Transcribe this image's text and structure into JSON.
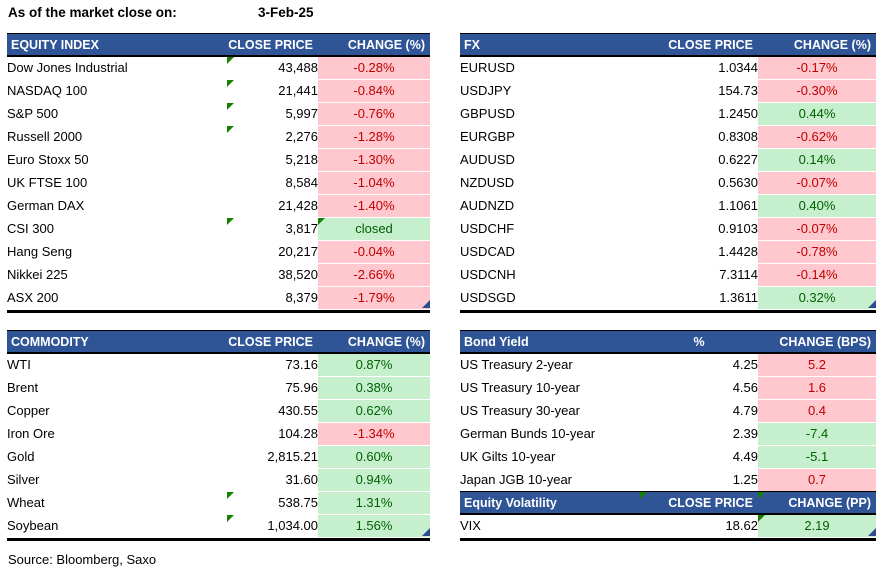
{
  "title": {
    "label": "As of the market close on:",
    "date": "3-Feb-25"
  },
  "footer": {
    "source": "Source: Bloomberg, Saxo"
  },
  "colors": {
    "header_bg": "#2F5597",
    "positive_bg": "#C6EFCE",
    "positive_text": "#006100",
    "negative_bg": "#FFC7CE",
    "negative_text": "#C00000",
    "comment_marker": "#178000",
    "corner_marker": "#2d4b8e"
  },
  "tables": {
    "equity": {
      "headers": [
        "EQUITY INDEX",
        "CLOSE PRICE",
        "CHANGE (%)"
      ],
      "end_marker": true,
      "rows": [
        {
          "name": "Dow Jones Industrial",
          "value": "43,488",
          "change": "-0.28%",
          "tone": "red",
          "mark_value": true
        },
        {
          "name": "NASDAQ 100",
          "value": "21,441",
          "change": "-0.84%",
          "tone": "red",
          "mark_value": true
        },
        {
          "name": "S&P 500",
          "value": "5,997",
          "change": "-0.76%",
          "tone": "red",
          "mark_value": true
        },
        {
          "name": "Russell 2000",
          "value": "2,276",
          "change": "-1.28%",
          "tone": "red",
          "mark_value": true
        },
        {
          "name": "Euro Stoxx 50",
          "value": "5,218",
          "change": "-1.30%",
          "tone": "red"
        },
        {
          "name": "UK FTSE 100",
          "value": "8,584",
          "change": "-1.04%",
          "tone": "red"
        },
        {
          "name": "German DAX",
          "value": "21,428",
          "change": "-1.40%",
          "tone": "red"
        },
        {
          "name": "CSI 300",
          "value": "3,817",
          "change": "closed",
          "tone": "green",
          "mark_value": true,
          "mark_change": true
        },
        {
          "name": "Hang Seng",
          "value": "20,217",
          "change": "-0.04%",
          "tone": "red"
        },
        {
          "name": "Nikkei 225",
          "value": "38,520",
          "change": "-2.66%",
          "tone": "red"
        },
        {
          "name": "ASX 200",
          "value": "8,379",
          "change": "-1.79%",
          "tone": "red"
        }
      ]
    },
    "fx": {
      "headers": [
        "FX",
        "CLOSE PRICE",
        "CHANGE (%)"
      ],
      "end_marker": true,
      "rows": [
        {
          "name": "EURUSD",
          "value": "1.0344",
          "change": "-0.17%",
          "tone": "red"
        },
        {
          "name": "USDJPY",
          "value": "154.73",
          "change": "-0.30%",
          "tone": "red"
        },
        {
          "name": "GBPUSD",
          "value": "1.2450",
          "change": "0.44%",
          "tone": "green"
        },
        {
          "name": "EURGBP",
          "value": "0.8308",
          "change": "-0.62%",
          "tone": "red"
        },
        {
          "name": "AUDUSD",
          "value": "0.6227",
          "change": "0.14%",
          "tone": "green"
        },
        {
          "name": "NZDUSD",
          "value": "0.5630",
          "change": "-0.07%",
          "tone": "red"
        },
        {
          "name": "AUDNZD",
          "value": "1.1061",
          "change": "0.40%",
          "tone": "green"
        },
        {
          "name": "USDCHF",
          "value": "0.9103",
          "change": "-0.07%",
          "tone": "red"
        },
        {
          "name": "USDCAD",
          "value": "1.4428",
          "change": "-0.78%",
          "tone": "red"
        },
        {
          "name": "USDCNH",
          "value": "7.3114",
          "change": "-0.14%",
          "tone": "red"
        },
        {
          "name": "USDSGD",
          "value": "1.3611",
          "change": "0.32%",
          "tone": "green"
        }
      ]
    },
    "commodity": {
      "headers": [
        "COMMODITY",
        "CLOSE PRICE",
        "CHANGE (%)"
      ],
      "end_marker": true,
      "rows": [
        {
          "name": "WTI",
          "value": "73.16",
          "change": "0.87%",
          "tone": "green"
        },
        {
          "name": "Brent",
          "value": "75.96",
          "change": "0.38%",
          "tone": "green"
        },
        {
          "name": "Copper",
          "value": "430.55",
          "change": "0.62%",
          "tone": "green"
        },
        {
          "name": "Iron Ore",
          "value": "104.28",
          "change": "-1.34%",
          "tone": "red"
        },
        {
          "name": "Gold",
          "value": "2,815.21",
          "change": "0.60%",
          "tone": "green"
        },
        {
          "name": "Silver",
          "value": "31.60",
          "change": "0.94%",
          "tone": "green"
        },
        {
          "name": "Wheat",
          "value": "538.75",
          "change": "1.31%",
          "tone": "green",
          "mark_value": true
        },
        {
          "name": "Soybean",
          "value": "1,034.00",
          "change": "1.56%",
          "tone": "green",
          "mark_value": true
        }
      ]
    },
    "bond": {
      "headers": [
        "Bond Yield",
        "%",
        "CHANGE (BPS)"
      ],
      "end_marker": false,
      "rows": [
        {
          "name": "US Treasury 2-year",
          "value": "4.25",
          "change": "5.2",
          "tone": "red"
        },
        {
          "name": "US Treasury 10-year",
          "value": "4.56",
          "change": "1.6",
          "tone": "red"
        },
        {
          "name": "US Treasury 30-year",
          "value": "4.79",
          "change": "0.4",
          "tone": "red"
        },
        {
          "name": "German Bunds 10-year",
          "value": "2.39",
          "change": "-7.4",
          "tone": "green"
        },
        {
          "name": "UK Gilts 10-year",
          "value": "4.49",
          "change": "-5.1",
          "tone": "green"
        },
        {
          "name": "Japan JGB 10-year",
          "value": "1.25",
          "change": "0.7",
          "tone": "red"
        }
      ]
    },
    "volatility": {
      "headers": [
        "Equity Volatility",
        "CLOSE PRICE",
        "CHANGE (PP)"
      ],
      "end_marker": true,
      "rows": [
        {
          "name": "VIX",
          "value": "18.62",
          "change": "2.19",
          "tone": "green",
          "mark_change": true
        }
      ]
    }
  }
}
